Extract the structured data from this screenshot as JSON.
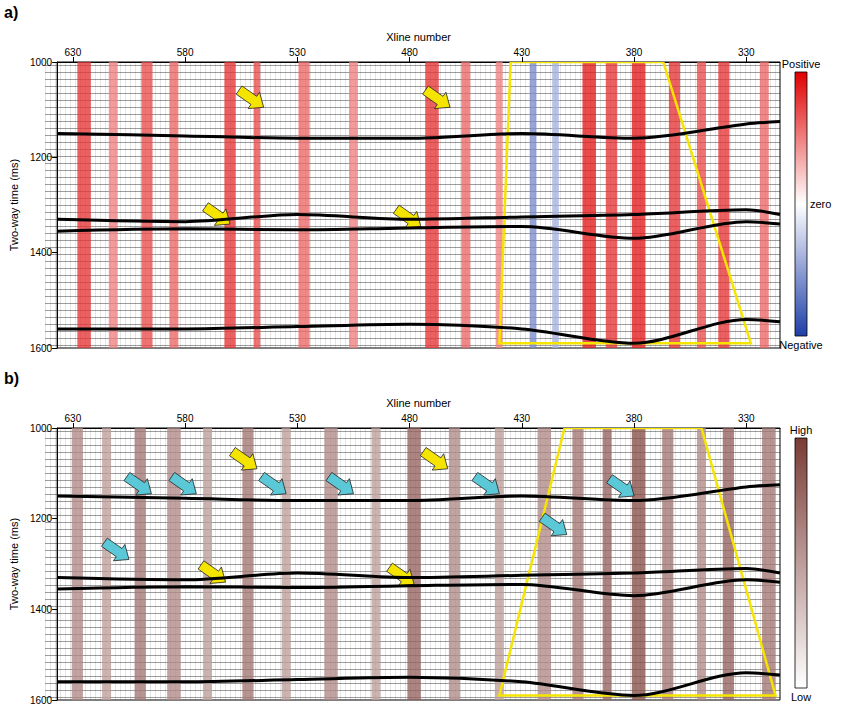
{
  "chart_data": [
    {
      "panel": "a)",
      "type": "seismic_section",
      "x_label": "Xline number",
      "y_label": "Two-way time (ms)",
      "xlim": [
        637,
        315
      ],
      "xticks": [
        630,
        580,
        530,
        480,
        430,
        380,
        330
      ],
      "ylim": [
        1000,
        1600
      ],
      "yticks": [
        1000,
        1200,
        1400,
        1600
      ],
      "horizons": [
        {
          "xline": [
            637,
            580,
            530,
            480,
            430,
            380,
            330,
            315
          ],
          "time": [
            1150,
            1155,
            1160,
            1160,
            1150,
            1160,
            1130,
            1125
          ]
        },
        {
          "xline": [
            637,
            580,
            530,
            480,
            430,
            380,
            330,
            315
          ],
          "time": [
            1330,
            1335,
            1320,
            1330,
            1325,
            1320,
            1310,
            1320
          ]
        },
        {
          "xline": [
            637,
            580,
            530,
            480,
            430,
            380,
            330,
            315
          ],
          "time": [
            1355,
            1350,
            1352,
            1348,
            1345,
            1370,
            1335,
            1340
          ]
        },
        {
          "xline": [
            637,
            580,
            530,
            480,
            430,
            380,
            330,
            315
          ],
          "time": [
            1560,
            1560,
            1555,
            1550,
            1560,
            1590,
            1540,
            1545
          ]
        }
      ],
      "bands": {
        "xline": [
          625,
          612,
          597,
          585,
          560,
          548,
          527,
          505,
          470,
          455,
          440,
          425,
          415,
          400,
          390,
          378,
          362,
          350,
          340,
          322
        ],
        "width": [
          6,
          4,
          5,
          4,
          5,
          3,
          5,
          4,
          6,
          4,
          3,
          3,
          3,
          6,
          5,
          6,
          5,
          4,
          5,
          4
        ],
        "value": [
          0.8,
          0.5,
          0.7,
          0.6,
          0.8,
          0.7,
          0.6,
          0.5,
          0.8,
          0.6,
          0.5,
          -0.6,
          -0.4,
          0.9,
          0.8,
          0.9,
          0.8,
          0.7,
          0.8,
          0.6
        ]
      },
      "colorbar": {
        "labels": [
          "Positive",
          "zero",
          "Negative"
        ],
        "colors": [
          "#e00000",
          "#ffffff",
          "#1f3fa8"
        ],
        "range": [
          -1,
          1
        ]
      },
      "arrows": [
        {
          "xline": 545,
          "time": 1095,
          "color": "#f5e400"
        },
        {
          "xline": 462,
          "time": 1095,
          "color": "#f5e400"
        },
        {
          "xline": 560,
          "time": 1340,
          "color": "#f5e400"
        },
        {
          "xline": 475,
          "time": 1345,
          "color": "#f5e400"
        }
      ],
      "outline": {
        "xline": [
          435,
          367,
          328,
          440
        ],
        "time": [
          1000,
          1000,
          1590,
          1590
        ],
        "color": "#f5e400"
      }
    },
    {
      "panel": "b)",
      "type": "seismic_section",
      "x_label": "Xline number",
      "y_label": "Two-way time (ms)",
      "xlim": [
        637,
        315
      ],
      "xticks": [
        630,
        580,
        530,
        480,
        430,
        380,
        330
      ],
      "ylim": [
        1000,
        1600
      ],
      "yticks": [
        1000,
        1200,
        1400,
        1600
      ],
      "horizons": [
        {
          "xline": [
            637,
            580,
            530,
            480,
            430,
            380,
            330,
            315
          ],
          "time": [
            1150,
            1155,
            1160,
            1160,
            1150,
            1160,
            1130,
            1125
          ]
        },
        {
          "xline": [
            637,
            580,
            530,
            480,
            430,
            380,
            330,
            315
          ],
          "time": [
            1330,
            1335,
            1320,
            1330,
            1325,
            1320,
            1310,
            1320
          ]
        },
        {
          "xline": [
            637,
            580,
            530,
            480,
            430,
            380,
            330,
            315
          ],
          "time": [
            1355,
            1350,
            1352,
            1348,
            1345,
            1370,
            1335,
            1340
          ]
        },
        {
          "xline": [
            637,
            580,
            530,
            480,
            430,
            380,
            330,
            315
          ],
          "time": [
            1560,
            1560,
            1555,
            1550,
            1560,
            1590,
            1540,
            1545
          ]
        }
      ],
      "bands": {
        "xline": [
          628,
          615,
          600,
          585,
          570,
          552,
          535,
          515,
          495,
          478,
          460,
          440,
          420,
          405,
          392,
          378,
          365,
          350,
          338,
          320
        ],
        "width": [
          5,
          4,
          5,
          6,
          4,
          5,
          4,
          6,
          4,
          6,
          5,
          4,
          6,
          5,
          4,
          6,
          5,
          4,
          5,
          6
        ],
        "value": [
          0.6,
          0.5,
          0.7,
          0.6,
          0.5,
          0.7,
          0.5,
          0.6,
          0.5,
          0.8,
          0.6,
          0.5,
          0.6,
          0.7,
          0.8,
          0.9,
          0.7,
          0.6,
          0.8,
          0.7
        ]
      },
      "colorbar": {
        "labels": [
          "High",
          "Low"
        ],
        "colors": [
          "#7a3b35",
          "#ffffff"
        ],
        "range": [
          0,
          1
        ]
      },
      "arrows": [
        {
          "xline": 548,
          "time": 1090,
          "color": "#f5e400"
        },
        {
          "xline": 463,
          "time": 1090,
          "color": "#f5e400"
        },
        {
          "xline": 562,
          "time": 1340,
          "color": "#f5e400"
        },
        {
          "xline": 478,
          "time": 1345,
          "color": "#f5e400"
        },
        {
          "xline": 595,
          "time": 1145,
          "color": "#5bc8d8"
        },
        {
          "xline": 575,
          "time": 1145,
          "color": "#5bc8d8"
        },
        {
          "xline": 535,
          "time": 1145,
          "color": "#5bc8d8"
        },
        {
          "xline": 505,
          "time": 1145,
          "color": "#5bc8d8"
        },
        {
          "xline": 440,
          "time": 1145,
          "color": "#5bc8d8"
        },
        {
          "xline": 380,
          "time": 1150,
          "color": "#5bc8d8"
        },
        {
          "xline": 605,
          "time": 1290,
          "color": "#5bc8d8"
        },
        {
          "xline": 410,
          "time": 1235,
          "color": "#5bc8d8"
        }
      ],
      "outline": {
        "xline": [
          411,
          350,
          317,
          440
        ],
        "time": [
          1000,
          1000,
          1590,
          1590
        ],
        "color": "#f5e400"
      }
    }
  ]
}
